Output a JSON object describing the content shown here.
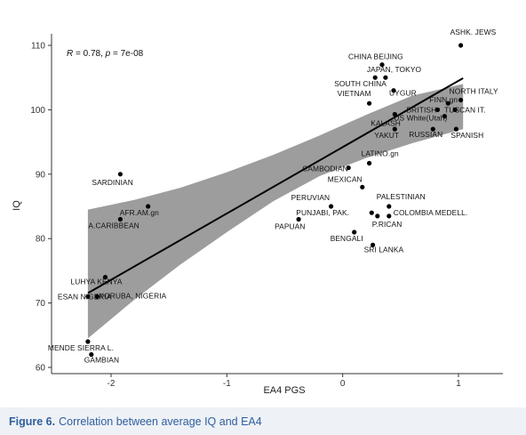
{
  "caption": {
    "label": "Figure 6.",
    "text": "Correlation between average IQ and EA4"
  },
  "chart_data": {
    "type": "scatter",
    "xlabel": "EA4 PGS",
    "ylabel": "IQ",
    "xlim": [
      -2.55,
      1.5
    ],
    "ylim": [
      59.5,
      112
    ],
    "xticks": [
      -2,
      -1,
      0,
      1
    ],
    "xtick_labels": [
      "-2",
      "-1",
      "0",
      "1"
    ],
    "yticks": [
      60,
      70,
      80,
      90,
      100,
      110
    ],
    "ytick_labels": [
      "60",
      "70",
      "80",
      "90",
      "100",
      "110"
    ],
    "annotation": {
      "r_label": "R",
      "r_value": " = 0.78, ",
      "p_label": "p",
      "p_value": " = 7e-08"
    },
    "regression": {
      "intercept": 94.2,
      "slope": 10.3,
      "x_range": [
        -2.2,
        1.04
      ]
    },
    "confidence_band": [
      {
        "x": -2.2,
        "lo": 64.5,
        "hi": 84.5
      },
      {
        "x": -1.8,
        "lo": 70.5,
        "hi": 86.0
      },
      {
        "x": -1.4,
        "lo": 76.0,
        "hi": 87.9
      },
      {
        "x": -1.0,
        "lo": 81.0,
        "hi": 90.3
      },
      {
        "x": -0.6,
        "lo": 85.8,
        "hi": 93.0
      },
      {
        "x": -0.2,
        "lo": 89.7,
        "hi": 96.0
      },
      {
        "x": 0.2,
        "lo": 92.5,
        "hi": 99.2
      },
      {
        "x": 0.6,
        "lo": 94.8,
        "hi": 102.2
      },
      {
        "x": 1.04,
        "lo": 97.0,
        "hi": 104.0
      }
    ],
    "grid": false,
    "legend": "none",
    "points": [
      {
        "name": "ASHK. JEWS",
        "x": 1.02,
        "y": 110
      },
      {
        "name": "CHINA BEIJING",
        "x": 0.34,
        "y": 107
      },
      {
        "name": "JAPAN, TOKYO",
        "x": 0.37,
        "y": 105
      },
      {
        "name": "SOUTH CHINA",
        "x": 0.28,
        "y": 105
      },
      {
        "name": "UYGUR",
        "x": 0.44,
        "y": 103
      },
      {
        "name": "VIETNAM",
        "x": 0.23,
        "y": 101
      },
      {
        "name": "NORTH ITALY",
        "x": 1.02,
        "y": 101.5
      },
      {
        "name": "FINN.gn",
        "x": 0.91,
        "y": 101
      },
      {
        "name": "BRITISH",
        "x": 0.82,
        "y": 100
      },
      {
        "name": "TUSCAN IT.",
        "x": 0.97,
        "y": 100
      },
      {
        "name": "KALASH",
        "x": 0.45,
        "y": 99.3
      },
      {
        "name": "US White(Utah)",
        "x": 0.88,
        "y": 99
      },
      {
        "name": "YAKUT",
        "x": 0.45,
        "y": 97
      },
      {
        "name": "RUSSIAN",
        "x": 0.78,
        "y": 97
      },
      {
        "name": "SPANISH",
        "x": 0.98,
        "y": 97
      },
      {
        "name": "LATINO.gn",
        "x": 0.23,
        "y": 91.7
      },
      {
        "name": "CAMBODIAN",
        "x": 0.05,
        "y": 91
      },
      {
        "name": "MEXICAN",
        "x": 0.17,
        "y": 88
      },
      {
        "name": "SARDINIAN",
        "x": -1.92,
        "y": 90
      },
      {
        "name": "AFR.AM.gn",
        "x": -1.68,
        "y": 85
      },
      {
        "name": "A.CARIBBEAN",
        "x": -1.92,
        "y": 83
      },
      {
        "name": "PERUVIAN",
        "x": -0.1,
        "y": 85
      },
      {
        "name": "PALESTINIAN",
        "x": 0.4,
        "y": 85
      },
      {
        "name": "PUNJABI, PAK.",
        "x": 0.25,
        "y": 84
      },
      {
        "name": "COLOMBIA MEDELL.",
        "x": 0.4,
        "y": 83.5
      },
      {
        "name": "P.RICAN",
        "x": 0.3,
        "y": 83.5
      },
      {
        "name": "PAPUAN",
        "x": -0.38,
        "y": 83
      },
      {
        "name": "BENGALI",
        "x": 0.1,
        "y": 81
      },
      {
        "name": "SRI LANKA",
        "x": 0.26,
        "y": 79
      },
      {
        "name": "LUHYA KENYA",
        "x": -2.05,
        "y": 74
      },
      {
        "name": "YORUBA, NIGERIA",
        "x": -2.12,
        "y": 71
      },
      {
        "name": "ESAN NIGERIA",
        "x": -2.2,
        "y": 71
      },
      {
        "name": "MENDE SIERRA L.",
        "x": -2.2,
        "y": 64
      },
      {
        "name": "GAMBIAN",
        "x": -2.17,
        "y": 62
      }
    ]
  }
}
